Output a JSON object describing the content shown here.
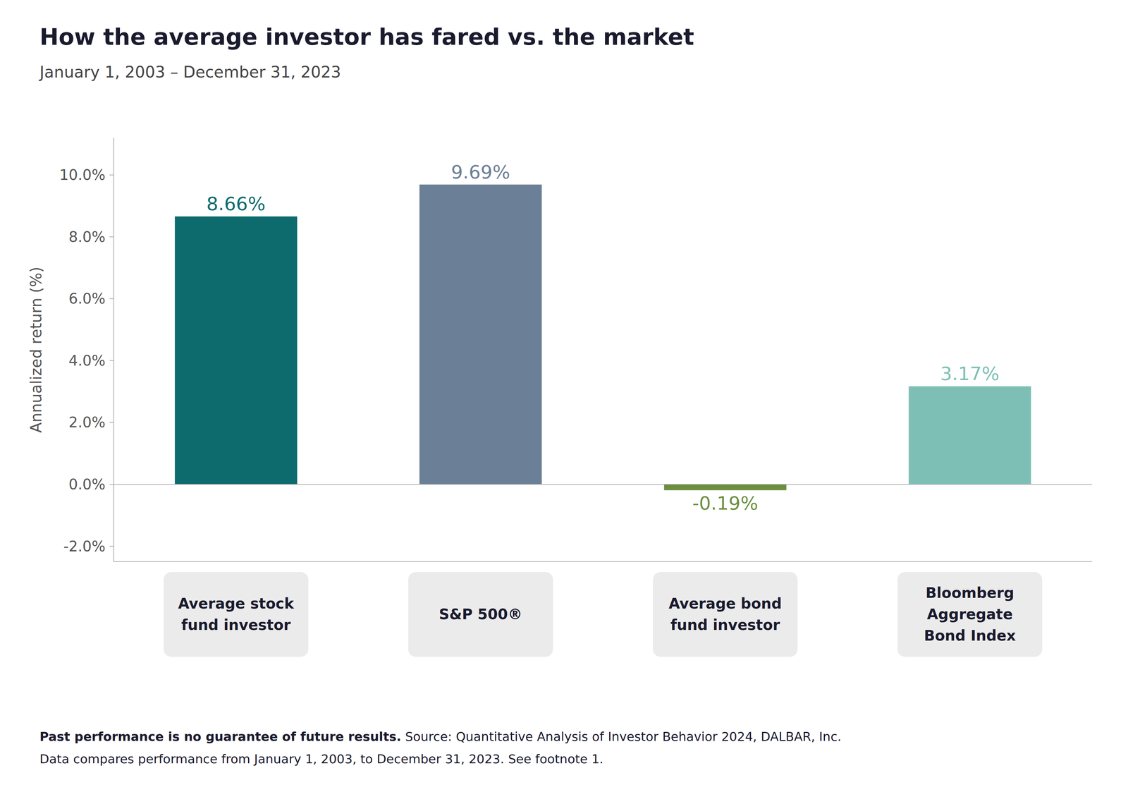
{
  "chart_data": {
    "type": "bar",
    "title": "How the average investor has fared vs. the market",
    "subtitle": "January 1, 2003 – December 31, 2023",
    "categories": [
      "Average stock\nfund investor",
      "S&P 500®",
      "Average bond\nfund investor",
      "Bloomberg\nAggregate\nBond Index"
    ],
    "values": [
      8.66,
      9.69,
      -0.19,
      3.17
    ],
    "value_labels": [
      "8.66%",
      "9.69%",
      "-0.19%",
      "3.17%"
    ],
    "colors": [
      "#0d6b6e",
      "#6b7f96",
      "#6b8f3e",
      "#7ebfb5"
    ],
    "ylabel": "Annualized return (%)",
    "ylim": [
      -2.5,
      11.2
    ],
    "yticks": [
      {
        "value": -2.0,
        "label": "-2.0%"
      },
      {
        "value": 0.0,
        "label": "0.0%"
      },
      {
        "value": 2.0,
        "label": "2.0%"
      },
      {
        "value": 4.0,
        "label": "4.0%"
      },
      {
        "value": 6.0,
        "label": "6.0%"
      },
      {
        "value": 8.0,
        "label": "8.0%"
      },
      {
        "value": 10.0,
        "label": "10.0%"
      }
    ],
    "annotations": [
      "Past performance is no guarantee of future results.",
      " Source: Quantitative Analysis of Investor Behavior 2024, DALBAR, Inc.",
      "Data compares performance from January 1, 2003, to December 31, 2023. See footnote 1."
    ],
    "data_labels": true,
    "grid": false
  }
}
